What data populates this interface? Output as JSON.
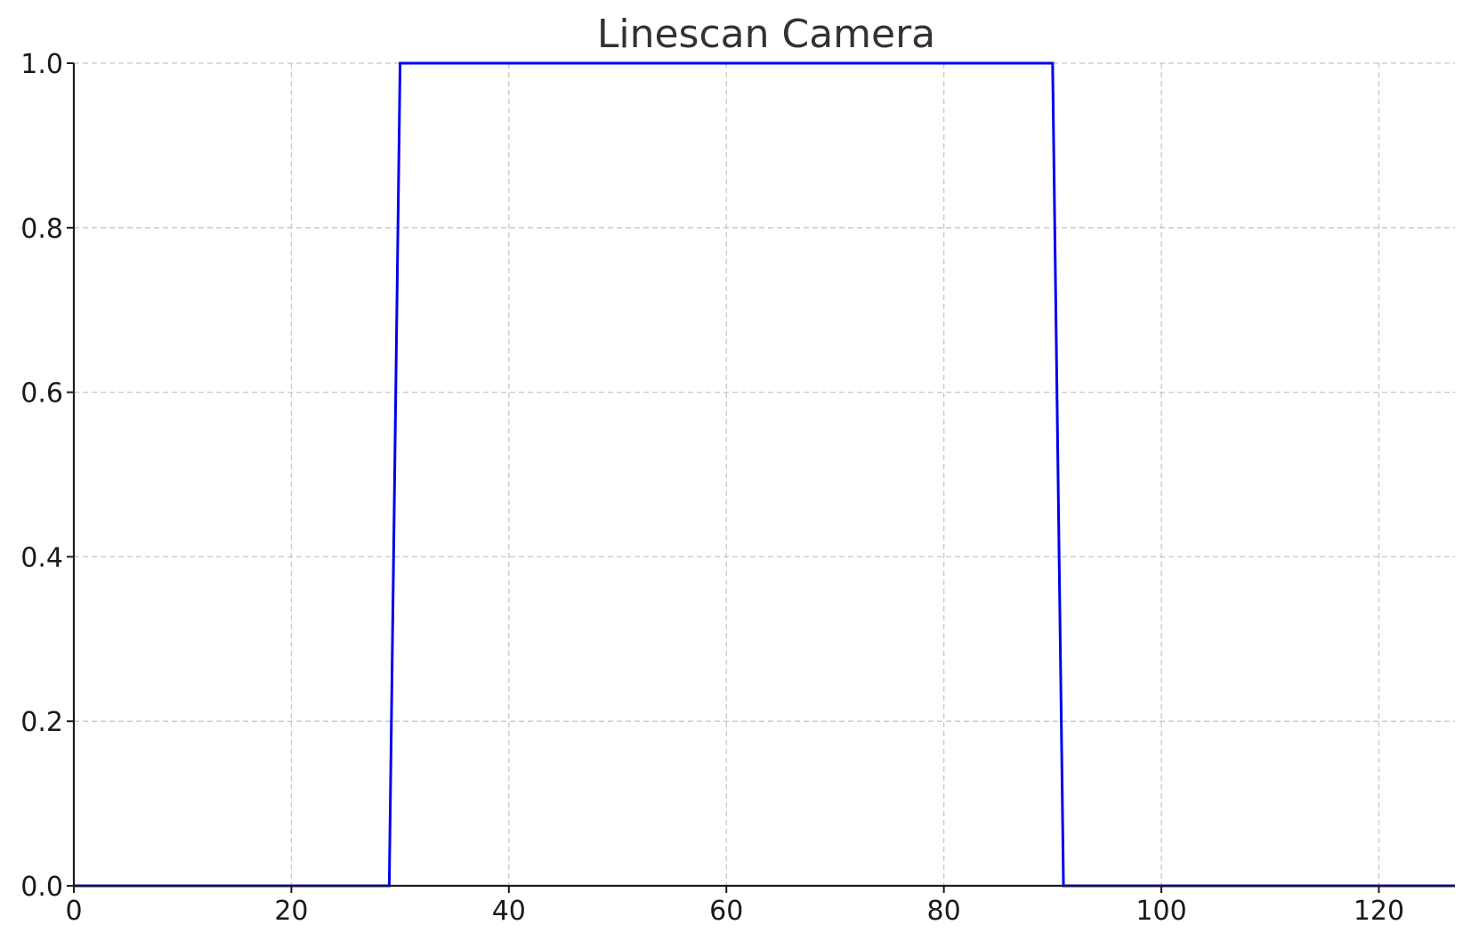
{
  "chart_data": {
    "type": "line",
    "title": "Linescan Camera",
    "xlabel": "",
    "ylabel": "",
    "xlim": [
      0,
      127
    ],
    "ylim": [
      0,
      1.0
    ],
    "x_ticks": [
      0,
      20,
      40,
      60,
      80,
      100,
      120
    ],
    "x_tick_labels": [
      "0",
      "20",
      "40",
      "60",
      "80",
      "100",
      "120"
    ],
    "y_ticks": [
      0.0,
      0.2,
      0.4,
      0.6,
      0.8,
      1.0
    ],
    "y_tick_labels": [
      "0.0",
      "0.2",
      "0.4",
      "0.6",
      "0.8",
      "1.0"
    ],
    "grid": true,
    "series": [
      {
        "color": "#0000ee",
        "x": [
          0,
          29,
          30,
          31,
          89,
          90,
          91,
          127
        ],
        "y": [
          0,
          0,
          1,
          1,
          1,
          1,
          0,
          0
        ]
      }
    ]
  }
}
